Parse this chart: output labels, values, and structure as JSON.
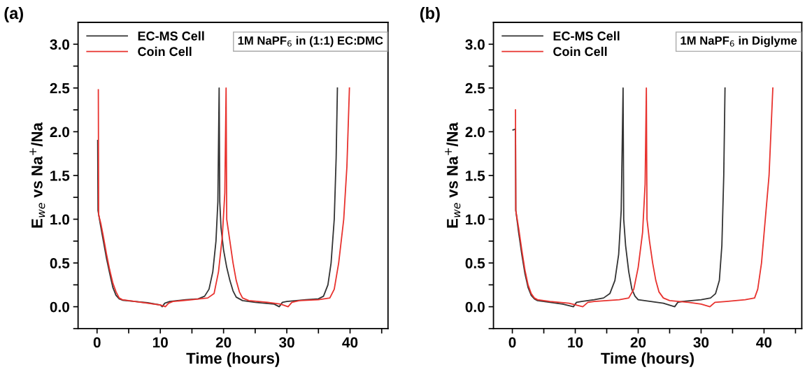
{
  "chart_data": [
    {
      "type": "line",
      "title": "(a)",
      "xlabel": "Time (hours)",
      "ylabel": "E$_{we}$ vs Na$^{+}$/Na",
      "annotations": [
        "1M NaPF$_{6}$ in (1:1) EC:DMC"
      ],
      "legend": "top left",
      "grid": false,
      "marker": "none",
      "line_style": "solid",
      "xlim": [
        -3,
        46
      ],
      "ylim": [
        -0.25,
        3.25
      ],
      "xticks": [
        0,
        {
          "value": 5,
          "label": null
        },
        10,
        {
          "value": 15,
          "label": null
        },
        20,
        {
          "value": 25,
          "label": null
        },
        30,
        {
          "value": 35,
          "label": null
        },
        40,
        {
          "value": 45,
          "label": null
        }
      ],
      "yticks": [
        {
          "value": -0.25,
          "label": null
        },
        {
          "value": 0,
          "label": "0.0"
        },
        {
          "value": 0.25,
          "label": null
        },
        0.5,
        {
          "value": 0.75,
          "label": null
        },
        {
          "value": 1,
          "label": "1.0"
        },
        {
          "value": 1.25,
          "label": null
        },
        1.5,
        {
          "value": 1.75,
          "label": null
        },
        {
          "value": 2,
          "label": "2.0"
        },
        {
          "value": 2.25,
          "label": null
        },
        2.5,
        {
          "value": 2.75,
          "label": null
        },
        {
          "value": 3,
          "label": "3.0"
        }
      ],
      "series": [
        {
          "name": "EC-MS Cell",
          "color": "#333333",
          "x": [
            0.1,
            0.15,
            0.5,
            1,
            1.5,
            2,
            2.5,
            3,
            3.5,
            4,
            6,
            8,
            10,
            10.3,
            10.7,
            11.5,
            14,
            16,
            17,
            17.7,
            18.3,
            18.8,
            19.1,
            19.3,
            19.4,
            19.6,
            20,
            20.5,
            21,
            21.5,
            22,
            23,
            25,
            28,
            28.8,
            29.3,
            30,
            33,
            35,
            35.8,
            36.5,
            37,
            37.5,
            37.8,
            38
          ],
          "values": [
            1.9,
            1.1,
            0.95,
            0.75,
            0.55,
            0.38,
            0.22,
            0.13,
            0.09,
            0.075,
            0.06,
            0.045,
            0.02,
            0.0,
            0.04,
            0.06,
            0.08,
            0.09,
            0.12,
            0.2,
            0.4,
            0.75,
            1.2,
            2.5,
            1.2,
            0.9,
            0.65,
            0.45,
            0.3,
            0.18,
            0.11,
            0.07,
            0.05,
            0.03,
            0.0,
            0.05,
            0.06,
            0.08,
            0.09,
            0.12,
            0.25,
            0.5,
            1.0,
            1.7,
            2.5
          ]
        },
        {
          "name": "Coin Cell",
          "color": "#e8322e",
          "x": [
            0.2,
            0.25,
            0.6,
            1,
            1.5,
            2,
            2.5,
            3,
            3.5,
            4,
            6,
            8,
            10,
            10.8,
            11.3,
            12,
            15,
            17.5,
            18.5,
            19.2,
            19.8,
            20.2,
            20.4,
            20.5,
            21,
            21.5,
            22,
            22.5,
            23,
            24,
            27,
            29,
            30.2,
            30.8,
            32,
            35,
            36.8,
            37.5,
            38.2,
            39,
            39.5,
            39.9
          ],
          "values": [
            2.48,
            1.05,
            0.95,
            0.8,
            0.6,
            0.42,
            0.27,
            0.17,
            0.1,
            0.08,
            0.06,
            0.04,
            0.02,
            0.0,
            0.04,
            0.06,
            0.08,
            0.1,
            0.15,
            0.4,
            0.8,
            1.3,
            2.5,
            1.0,
            0.75,
            0.5,
            0.3,
            0.17,
            0.1,
            0.07,
            0.05,
            0.03,
            0.0,
            0.05,
            0.07,
            0.08,
            0.1,
            0.2,
            0.5,
            1.0,
            1.6,
            2.5
          ]
        }
      ]
    },
    {
      "type": "line",
      "title": "(b)",
      "xlabel": "Time (hours)",
      "ylabel": "E$_{we}$ vs Na$^{+}$/Na",
      "annotations": [
        "1M NaPF$_{6}$ in Diglyme"
      ],
      "legend": "top left",
      "grid": false,
      "marker": "none",
      "line_style": "solid",
      "xlim": [
        -3,
        46
      ],
      "ylim": [
        -0.25,
        3.25
      ],
      "xticks": [
        0,
        {
          "value": 5,
          "label": null
        },
        10,
        {
          "value": 15,
          "label": null
        },
        20,
        {
          "value": 25,
          "label": null
        },
        30,
        {
          "value": 35,
          "label": null
        },
        40,
        {
          "value": 45,
          "label": null
        }
      ],
      "yticks": [
        {
          "value": -0.25,
          "label": null
        },
        {
          "value": 0,
          "label": "0.0"
        },
        {
          "value": 0.25,
          "label": null
        },
        0.5,
        {
          "value": 0.75,
          "label": null
        },
        {
          "value": 1,
          "label": "1.0"
        },
        {
          "value": 1.25,
          "label": null
        },
        1.5,
        {
          "value": 1.75,
          "label": null
        },
        {
          "value": 2,
          "label": "2.0"
        },
        {
          "value": 2.25,
          "label": null
        },
        2.5,
        {
          "value": 2.75,
          "label": null
        },
        {
          "value": 3,
          "label": "3.0"
        }
      ],
      "series": [
        {
          "name": "EC-MS Cell",
          "color": "#333333",
          "x": [
            0.1,
            0.5,
            0.55,
            1,
            1.5,
            2,
            2.5,
            3,
            3.5,
            4,
            6,
            8,
            9.7,
            10.2,
            11,
            13,
            14.5,
            15.5,
            16.3,
            16.9,
            17.3,
            17.6,
            17.7,
            18,
            18.5,
            19,
            19.5,
            20,
            22,
            24,
            25.8,
            26.3,
            27,
            30,
            31.5,
            32.3,
            32.9,
            33.3,
            33.6,
            33.8
          ],
          "values": [
            2.02,
            2.03,
            1.1,
            0.85,
            0.6,
            0.38,
            0.22,
            0.13,
            0.09,
            0.07,
            0.05,
            0.03,
            0.0,
            0.05,
            0.06,
            0.08,
            0.1,
            0.15,
            0.3,
            0.6,
            1.1,
            2.5,
            1.0,
            0.7,
            0.4,
            0.2,
            0.12,
            0.08,
            0.06,
            0.04,
            0.0,
            0.05,
            0.06,
            0.08,
            0.1,
            0.15,
            0.3,
            0.7,
            1.5,
            2.5
          ]
        },
        {
          "name": "Coin Cell",
          "color": "#e8322e",
          "x": [
            0.5,
            0.55,
            1,
            1.5,
            2,
            2.5,
            3,
            3.5,
            4,
            6,
            9,
            11.2,
            12,
            13,
            17,
            18.5,
            19.3,
            20,
            20.7,
            21.1,
            21.3,
            21.4,
            21.8,
            22.3,
            22.8,
            23.3,
            24,
            25,
            28,
            30,
            31.4,
            32.2,
            34,
            37,
            38.5,
            39,
            39.6,
            40.2,
            40.8,
            41.4
          ],
          "values": [
            2.25,
            1.1,
            0.9,
            0.65,
            0.42,
            0.25,
            0.15,
            0.1,
            0.08,
            0.06,
            0.04,
            0.0,
            0.05,
            0.06,
            0.08,
            0.1,
            0.2,
            0.45,
            0.85,
            1.4,
            2.5,
            1.0,
            0.75,
            0.5,
            0.3,
            0.17,
            0.1,
            0.07,
            0.05,
            0.03,
            0.0,
            0.05,
            0.06,
            0.08,
            0.1,
            0.2,
            0.5,
            1.0,
            1.5,
            2.5
          ]
        }
      ]
    }
  ]
}
